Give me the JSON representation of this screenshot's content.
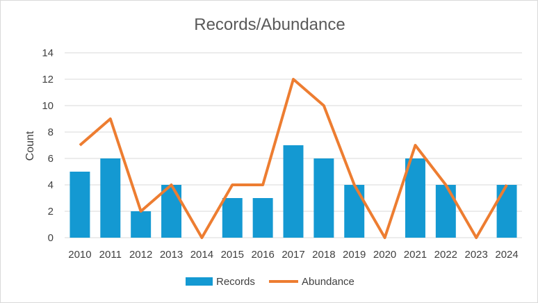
{
  "chart_data": {
    "type": "bar",
    "title": "Records/Abundance",
    "ylabel": "Count",
    "xlabel": "",
    "categories": [
      "2010",
      "2011",
      "2012",
      "2013",
      "2014",
      "2015",
      "2016",
      "2017",
      "2018",
      "2019",
      "2020",
      "2021",
      "2022",
      "2023",
      "2024"
    ],
    "ylim": [
      0,
      14
    ],
    "yticks": [
      0,
      2,
      4,
      6,
      8,
      10,
      12,
      14
    ],
    "grid": true,
    "legend_position": "bottom",
    "series": [
      {
        "name": "Records",
        "type": "bar",
        "color": "#1499d2",
        "values": [
          5,
          6,
          2,
          4,
          0,
          3,
          3,
          7,
          6,
          4,
          0,
          6,
          4,
          0,
          4
        ]
      },
      {
        "name": "Abundance",
        "type": "line",
        "color": "#ed7d31",
        "values": [
          7,
          9,
          2,
          4,
          0,
          4,
          4,
          12,
          10,
          4,
          0,
          7,
          4,
          0,
          4
        ]
      }
    ]
  }
}
